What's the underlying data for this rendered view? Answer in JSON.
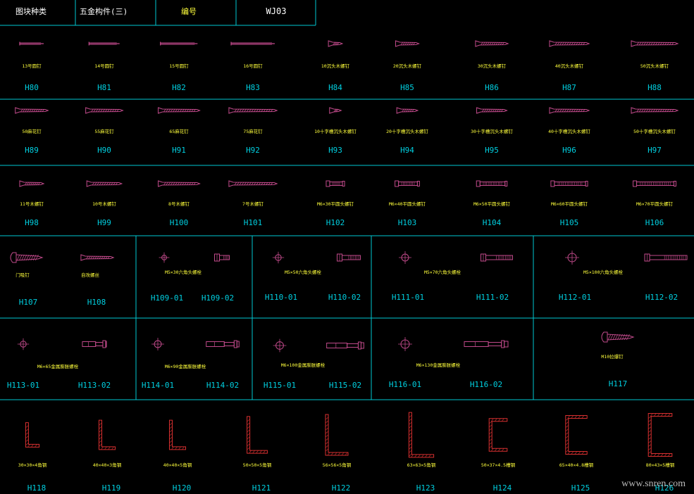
{
  "colors": {
    "grid": "#00c8d2",
    "cap": "#ffff3c",
    "code": "#00cfe0",
    "screw": "#c04a8a",
    "profile": "#d83030",
    "header_white": "#ffffff",
    "header_yellow": "#ffff3c"
  },
  "header": {
    "c1": "图块种类",
    "c2": "五金构件(三)",
    "c3": "编号",
    "c4": "WJ03"
  },
  "rows": [
    {
      "items": [
        {
          "code": "H80",
          "cap": "13号圆钉",
          "icon": "nail",
          "s": 0.55
        },
        {
          "code": "H81",
          "cap": "14号圆钉",
          "icon": "nail",
          "s": 0.7
        },
        {
          "code": "H82",
          "cap": "15号圆钉",
          "icon": "nail",
          "s": 0.85
        },
        {
          "code": "H83",
          "cap": "16号圆钉",
          "icon": "nail",
          "s": 1.0
        },
        {
          "code": "H84",
          "cap": "10沉头木螺钉",
          "icon": "wscrew",
          "s": 0.3
        },
        {
          "code": "H85",
          "cap": "20沉头木螺钉",
          "icon": "wscrew",
          "s": 0.5
        },
        {
          "code": "H86",
          "cap": "30沉头木螺钉",
          "icon": "wscrew",
          "s": 0.7
        },
        {
          "code": "H87",
          "cap": "40沉头木螺钉",
          "icon": "wscrew",
          "s": 0.85
        },
        {
          "code": "H88",
          "cap": "50沉头木螺钉",
          "icon": "wscrew",
          "s": 1.0
        }
      ]
    },
    {
      "items": [
        {
          "code": "H89",
          "cap": "50麻花钉",
          "icon": "twist",
          "s": 0.75
        },
        {
          "code": "H90",
          "cap": "55麻花钉",
          "icon": "twist",
          "s": 0.85
        },
        {
          "code": "H91",
          "cap": "65麻花钉",
          "icon": "twist",
          "s": 0.95
        },
        {
          "code": "H92",
          "cap": "75麻花钉",
          "icon": "twist",
          "s": 1.1
        },
        {
          "code": "H93",
          "cap": "10十字槽沉头木螺钉",
          "icon": "wscrew",
          "s": 0.25
        },
        {
          "code": "H94",
          "cap": "20十字槽沉头木螺钉",
          "icon": "wscrew",
          "s": 0.45
        },
        {
          "code": "H95",
          "cap": "30十字槽沉头木螺钉",
          "icon": "wscrew",
          "s": 0.65
        },
        {
          "code": "H96",
          "cap": "40十字槽沉头木螺钉",
          "icon": "wscrew",
          "s": 0.85
        },
        {
          "code": "H97",
          "cap": "50十字槽沉头木螺钉",
          "icon": "wscrew",
          "s": 1.0
        }
      ]
    },
    {
      "items": [
        {
          "code": "H98",
          "cap": "11号木螺钉",
          "icon": "twist",
          "s": 0.55
        },
        {
          "code": "H99",
          "cap": "10号木螺钉",
          "icon": "twist",
          "s": 0.8
        },
        {
          "code": "H100",
          "cap": "8号木螺钉",
          "icon": "twist",
          "s": 0.95
        },
        {
          "code": "H101",
          "cap": "7号木螺钉",
          "icon": "twist",
          "s": 1.1
        },
        {
          "code": "H102",
          "cap": "M6×30平圆头螺钉",
          "icon": "bolt",
          "s": 0.45
        },
        {
          "code": "H103",
          "cap": "M6×40平圆头螺钉",
          "icon": "bolt",
          "s": 0.6
        },
        {
          "code": "H104",
          "cap": "M6×50平圆头螺钉",
          "icon": "bolt",
          "s": 0.75
        },
        {
          "code": "H105",
          "cap": "M6×60平圆头螺钉",
          "icon": "bolt",
          "s": 0.9
        },
        {
          "code": "H106",
          "cap": "M6×70平圆头螺钉",
          "icon": "bolt",
          "s": 1.05
        }
      ]
    }
  ],
  "row4": {
    "h107": {
      "code": "H107",
      "cap": "门吸钉"
    },
    "h108": {
      "code": "H108",
      "cap": "自攻螺丝"
    },
    "pairs": [
      {
        "cap": "M5×30六角头螺栓",
        "c1": "H109-01",
        "c2": "H109-02",
        "s": 0.35
      },
      {
        "cap": "M5×50六角头螺栓",
        "c1": "H110-01",
        "c2": "H110-02",
        "s": 0.55
      },
      {
        "cap": "M5×70六角头螺栓",
        "c1": "H111-01",
        "c2": "H111-02",
        "s": 0.75
      },
      {
        "cap": "M5×100六角头螺栓",
        "c1": "H112-01",
        "c2": "H112-02",
        "s": 1.0
      }
    ]
  },
  "row5": {
    "pairs": [
      {
        "cap": "M6×65金属膨胀螺栓",
        "c1": "H113-01",
        "c2": "H113-02",
        "s": 0.55
      },
      {
        "cap": "M6×90金属膨胀螺栓",
        "c1": "H114-01",
        "c2": "H114-02",
        "s": 0.75
      },
      {
        "cap": "M6×100金属膨胀螺栓",
        "c1": "H115-01",
        "c2": "H115-02",
        "s": 0.85
      },
      {
        "cap": "M6×130金属膨胀螺栓",
        "c1": "H116-01",
        "c2": "H116-02",
        "s": 1.0
      }
    ],
    "h117": {
      "code": "H117",
      "cap": "M10拉爆钉"
    }
  },
  "row6": {
    "items": [
      {
        "code": "H118",
        "cap": "30×30×4角钢",
        "icon": "angle",
        "s": 0.6
      },
      {
        "code": "H119",
        "cap": "40×40×3角钢",
        "icon": "angle",
        "s": 0.72
      },
      {
        "code": "H120",
        "cap": "40×40×5角钢",
        "icon": "angle",
        "s": 0.72
      },
      {
        "code": "H121",
        "cap": "50×50×5角钢",
        "icon": "angle",
        "s": 0.9
      },
      {
        "code": "H122",
        "cap": "56×56×5角钢",
        "icon": "angle",
        "s": 1.0
      },
      {
        "code": "H123",
        "cap": "63×63×5角钢",
        "icon": "angle",
        "s": 1.1
      },
      {
        "code": "H124",
        "cap": "50×37×4.5槽钢",
        "icon": "channel",
        "s": 0.8
      },
      {
        "code": "H125",
        "cap": "65×40×4.8槽钢",
        "icon": "channel",
        "s": 0.95
      },
      {
        "code": "H126",
        "cap": "80×43×5槽钢",
        "icon": "channel",
        "s": 1.05
      }
    ]
  },
  "watermark": "www.snren.com"
}
